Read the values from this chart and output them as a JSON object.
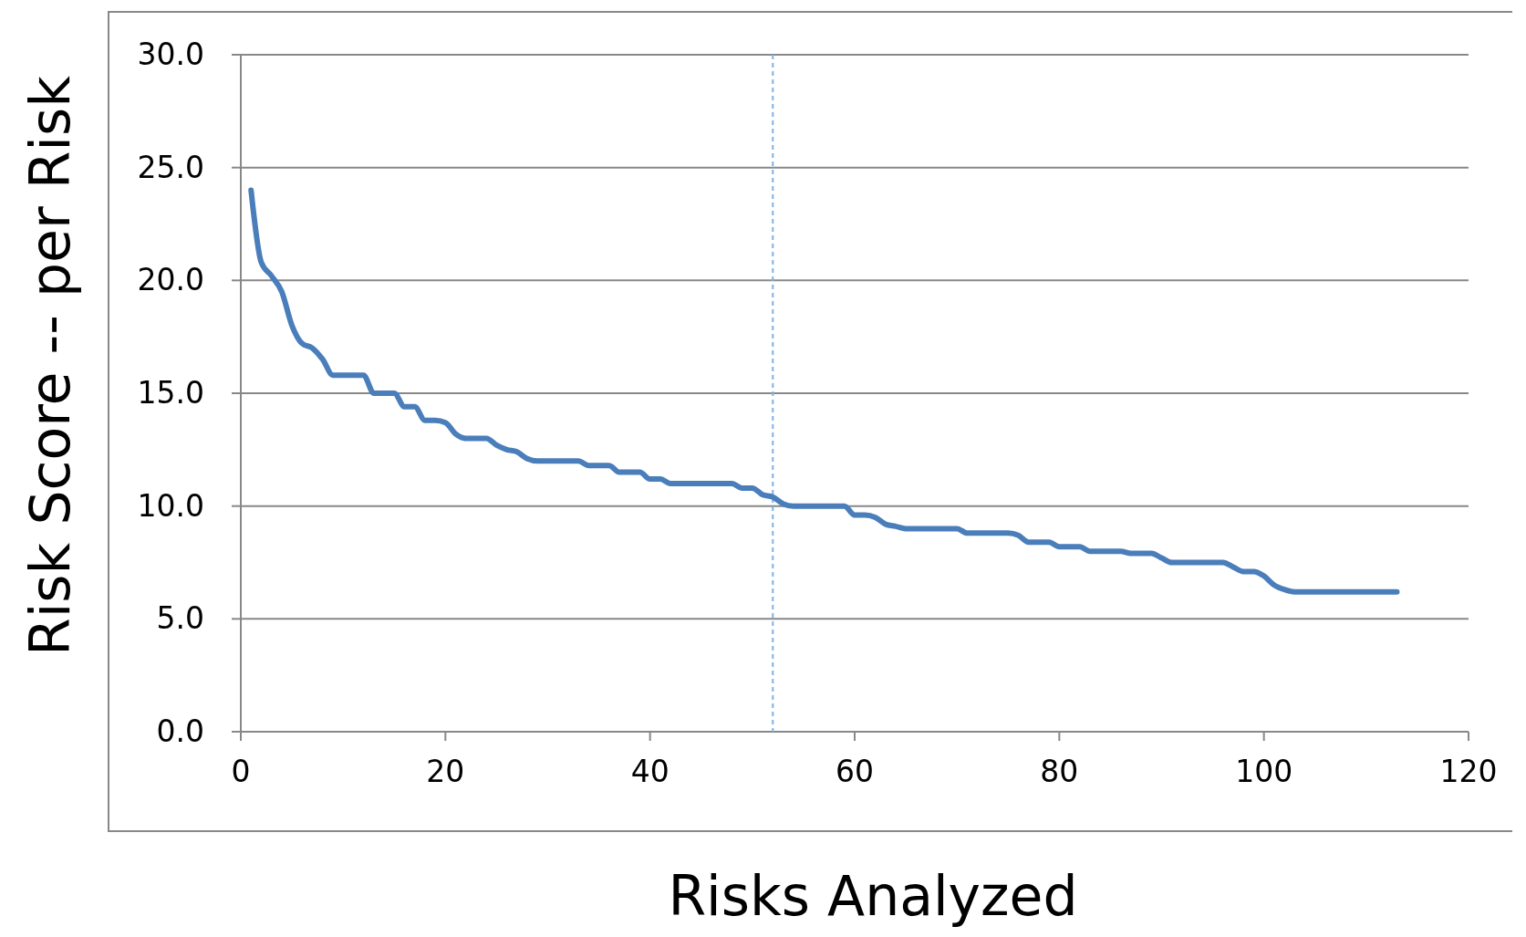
{
  "chart_data": {
    "type": "line",
    "xlabel": "Risks Analyzed",
    "ylabel": "Risk Score -- per Risk",
    "xlim": [
      0,
      120
    ],
    "xticks": [
      0,
      20,
      40,
      60,
      80,
      100,
      120
    ],
    "ylim": [
      0,
      30
    ],
    "yticks": [
      {
        "value": 0,
        "label": "0.0"
      },
      {
        "value": 5,
        "label": "5.0"
      },
      {
        "value": 10,
        "label": "10.0"
      },
      {
        "value": 15,
        "label": "15.0"
      },
      {
        "value": 20,
        "label": "20.0"
      },
      {
        "value": 25,
        "label": "25.0"
      },
      {
        "value": 30,
        "label": "30.0"
      }
    ],
    "grid": "y",
    "marker": "none",
    "line_style": "solid",
    "ref_lines": [
      {
        "axis": "x",
        "value": 52,
        "color": "#7fb2e5",
        "line_style": "dashed"
      }
    ],
    "x": [
      1,
      2,
      3,
      4,
      5,
      6,
      7,
      8,
      9,
      10,
      11,
      12,
      13,
      14,
      15,
      16,
      17,
      18,
      19,
      20,
      21,
      22,
      23,
      24,
      25,
      26,
      27,
      28,
      29,
      30,
      31,
      32,
      33,
      34,
      35,
      36,
      37,
      38,
      39,
      40,
      41,
      42,
      43,
      44,
      45,
      46,
      47,
      48,
      49,
      50,
      51,
      52,
      53,
      54,
      55,
      56,
      57,
      58,
      59,
      60,
      61,
      62,
      63,
      64,
      65,
      66,
      67,
      68,
      69,
      70,
      71,
      72,
      73,
      74,
      75,
      76,
      77,
      78,
      79,
      80,
      81,
      82,
      83,
      84,
      85,
      86,
      87,
      88,
      89,
      90,
      91,
      92,
      93,
      94,
      95,
      96,
      97,
      98,
      99,
      100,
      101,
      102,
      103,
      104,
      105,
      106,
      107,
      108,
      109,
      110,
      111,
      112,
      113
    ],
    "series": [
      {
        "color": "#4a7ebb",
        "values": [
          24.0,
          20.8,
          20.2,
          19.5,
          18.0,
          17.2,
          17.0,
          16.5,
          15.8,
          15.8,
          15.8,
          15.8,
          15.0,
          15.0,
          15.0,
          14.4,
          14.4,
          13.8,
          13.8,
          13.7,
          13.2,
          13.0,
          13.0,
          13.0,
          12.7,
          12.5,
          12.4,
          12.1,
          12.0,
          12.0,
          12.0,
          12.0,
          12.0,
          11.8,
          11.8,
          11.8,
          11.5,
          11.5,
          11.5,
          11.2,
          11.2,
          11.0,
          11.0,
          11.0,
          11.0,
          11.0,
          11.0,
          11.0,
          10.8,
          10.8,
          10.5,
          10.4,
          10.1,
          10.0,
          10.0,
          10.0,
          10.0,
          10.0,
          10.0,
          9.6,
          9.6,
          9.5,
          9.2,
          9.1,
          9.0,
          9.0,
          9.0,
          9.0,
          9.0,
          9.0,
          8.8,
          8.8,
          8.8,
          8.8,
          8.8,
          8.7,
          8.4,
          8.4,
          8.4,
          8.2,
          8.2,
          8.2,
          8.0,
          8.0,
          8.0,
          8.0,
          7.9,
          7.9,
          7.9,
          7.7,
          7.5,
          7.5,
          7.5,
          7.5,
          7.5,
          7.5,
          7.3,
          7.1,
          7.1,
          6.9,
          6.5,
          6.3,
          6.2,
          6.2,
          6.2,
          6.2,
          6.2,
          6.2,
          6.2,
          6.2,
          6.2,
          6.2,
          6.2
        ]
      }
    ]
  }
}
